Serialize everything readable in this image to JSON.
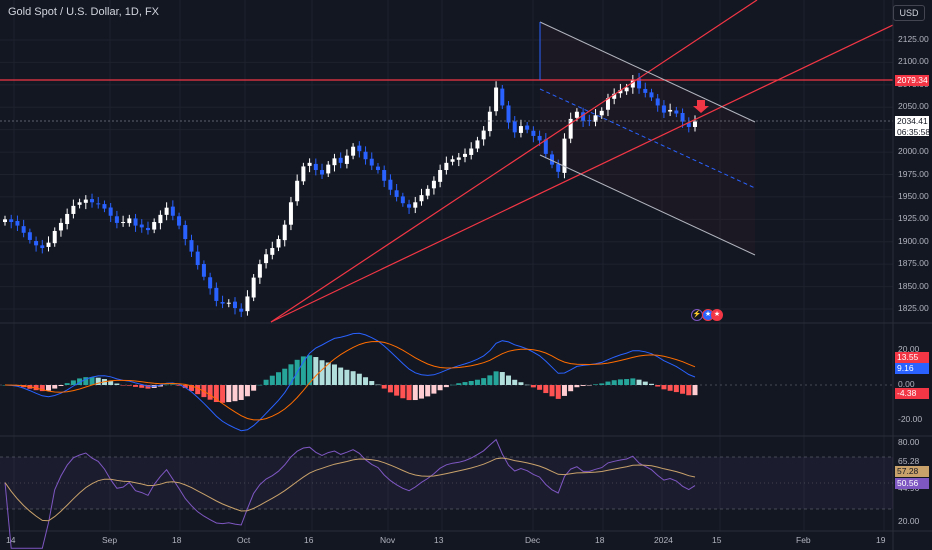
{
  "header": {
    "title": "Gold Spot / U.S. Dollar, 1D, FX",
    "currency_button": "USD"
  },
  "price_axis": {
    "ticks": [
      "2125.00",
      "2100.00",
      "2075.00",
      "2050.00",
      "2025.00",
      "2000.00",
      "1975.00",
      "1950.00",
      "1925.00",
      "1900.00",
      "1875.00",
      "1850.00",
      "1825.00"
    ],
    "resistance_tag": "2079.34",
    "current_price": "2034.41",
    "countdown": "06:35:58",
    "colors": {
      "resistance": "#f23645",
      "price_tag_bg": "#ffffff",
      "up": "#ffffff",
      "down": "#2962ff"
    }
  },
  "macd_axis": {
    "ticks": [
      "20.00",
      "0.00",
      "-20.00"
    ],
    "tags": [
      {
        "label": "13.55",
        "color": "#f23645"
      },
      {
        "label": "9.16",
        "color": "#2962ff"
      },
      {
        "label": "-4.38",
        "color": "#f23645"
      }
    ]
  },
  "rsi_axis": {
    "ticks": [
      "80.00",
      "65.28",
      "44.96",
      "20.00"
    ],
    "tags": [
      {
        "label": "57.28",
        "color": "#c9a26b"
      },
      {
        "label": "50.56",
        "color": "#7e57c2"
      }
    ]
  },
  "time_axis": {
    "ticks": [
      "14",
      "Sep",
      "18",
      "Oct",
      "16",
      "Nov",
      "13",
      "Dec",
      "18",
      "2024",
      "15",
      "Feb",
      "19"
    ]
  },
  "event_icons": [
    "lightning-event-icon",
    "us-flag-event-icon",
    "us-flag-event-icon"
  ],
  "chart_data": {
    "type": "candlestick",
    "instrument": "Gold Spot / U.S. Dollar",
    "interval": "1D",
    "exchange": "FX",
    "ylim": [
      1810,
      2140
    ],
    "last_price": 2034.41,
    "resistance_level": 2079.34,
    "close_series": [
      1925,
      1922,
      1918,
      1910,
      1902,
      1896,
      1893,
      1899,
      1912,
      1921,
      1931,
      1940,
      1944,
      1947,
      1944,
      1942,
      1937,
      1929,
      1921,
      1922,
      1926,
      1918,
      1916,
      1913,
      1922,
      1930,
      1938,
      1929,
      1918,
      1903,
      1889,
      1874,
      1861,
      1848,
      1834,
      1831,
      1832,
      1826,
      1822,
      1839,
      1860,
      1875,
      1886,
      1893,
      1903,
      1919,
      1944,
      1968,
      1984,
      1988,
      1980,
      1975,
      1986,
      1993,
      1988,
      1996,
      2006,
      2001,
      1992,
      1985,
      1980,
      1968,
      1958,
      1950,
      1943,
      1938,
      1944,
      1952,
      1959,
      1968,
      1980,
      1988,
      1992,
      1994,
      1998,
      2004,
      2013,
      2024,
      2045,
      2072,
      2052,
      2033,
      2022,
      2029,
      2025,
      2018,
      2013,
      1998,
      1986,
      1978,
      2015,
      2037,
      2045,
      2035,
      2035,
      2041,
      2046,
      2060,
      2065,
      2069,
      2072,
      2081,
      2071,
      2066,
      2061,
      2052,
      2044,
      2047,
      2043,
      2034,
      2028,
      2034
    ],
    "macd": {
      "macd_last": 9.16,
      "signal_last": 13.55,
      "histogram_last": -4.38,
      "ylim": [
        -30,
        28
      ]
    },
    "rsi": {
      "rsi_last": 50.56,
      "ma_last": 57.28,
      "upper_band": 65.28,
      "lower_band": 44.96,
      "ylim": [
        20,
        80
      ]
    }
  }
}
